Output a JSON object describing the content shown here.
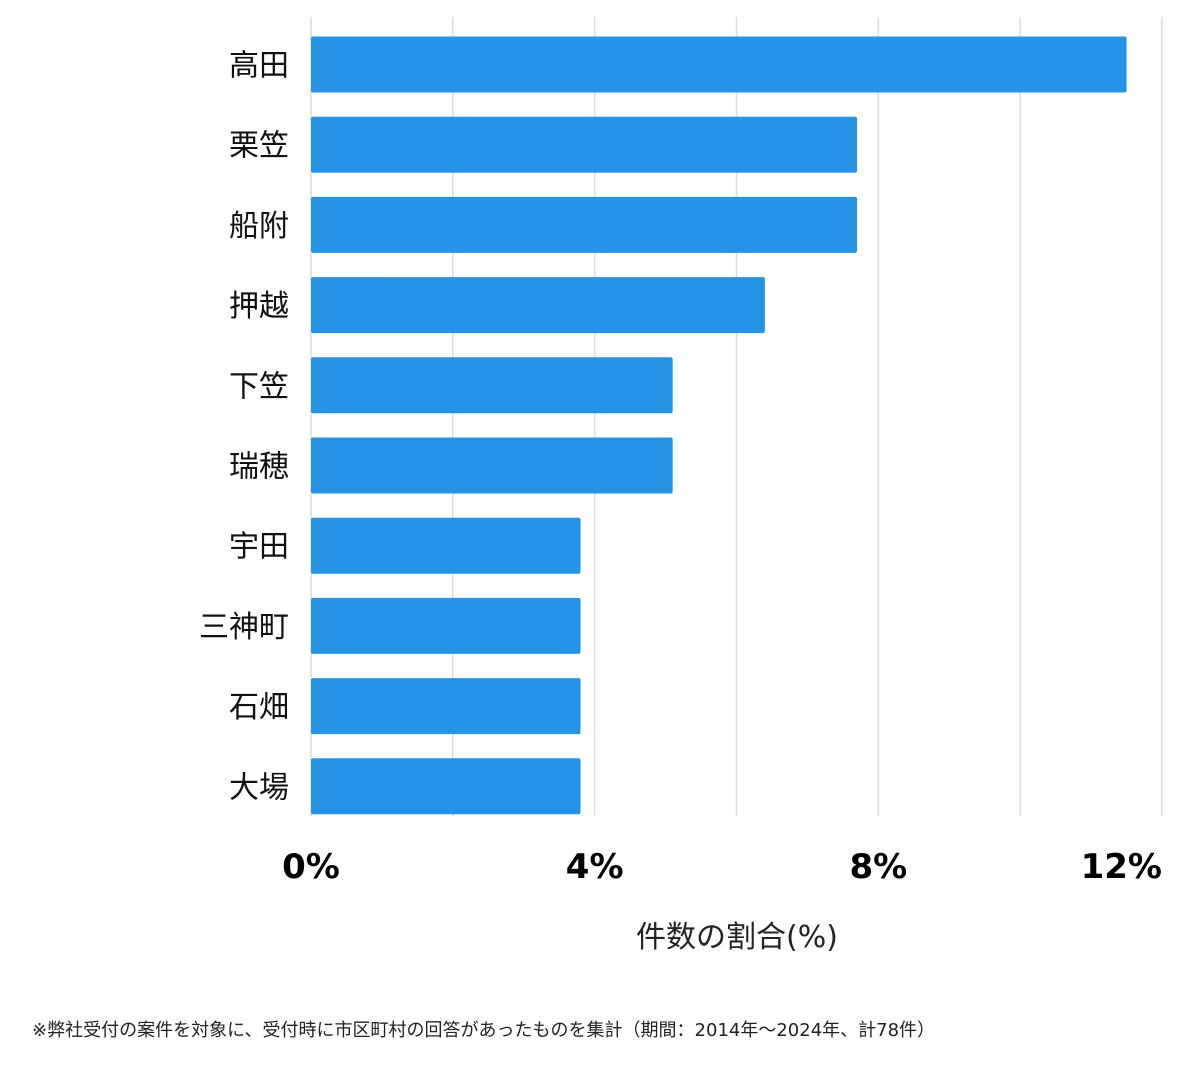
{
  "chart_data": {
    "type": "bar",
    "orientation": "horizontal",
    "categories": [
      "高田",
      "栗笠",
      "船附",
      "押越",
      "下笠",
      "瑞穂",
      "宇田",
      "三神町",
      "石畑",
      "大場"
    ],
    "values": [
      11.5,
      7.7,
      7.7,
      6.4,
      5.1,
      5.1,
      3.8,
      3.8,
      3.8,
      3.8
    ],
    "xlim": [
      0,
      12
    ],
    "major_ticks": [
      0,
      4,
      8,
      12
    ],
    "tick_labels": [
      "0%",
      "4%",
      "8%",
      "12%"
    ],
    "grid_step": 2,
    "grid": true,
    "xlabel": "件数の割合(%)",
    "bar_color": "#2693e6"
  },
  "footnote": "※弊社受付の案件を対象に、受付時に市区町村の回答があったものを集計（期間：2014年～2024年、計78件）"
}
